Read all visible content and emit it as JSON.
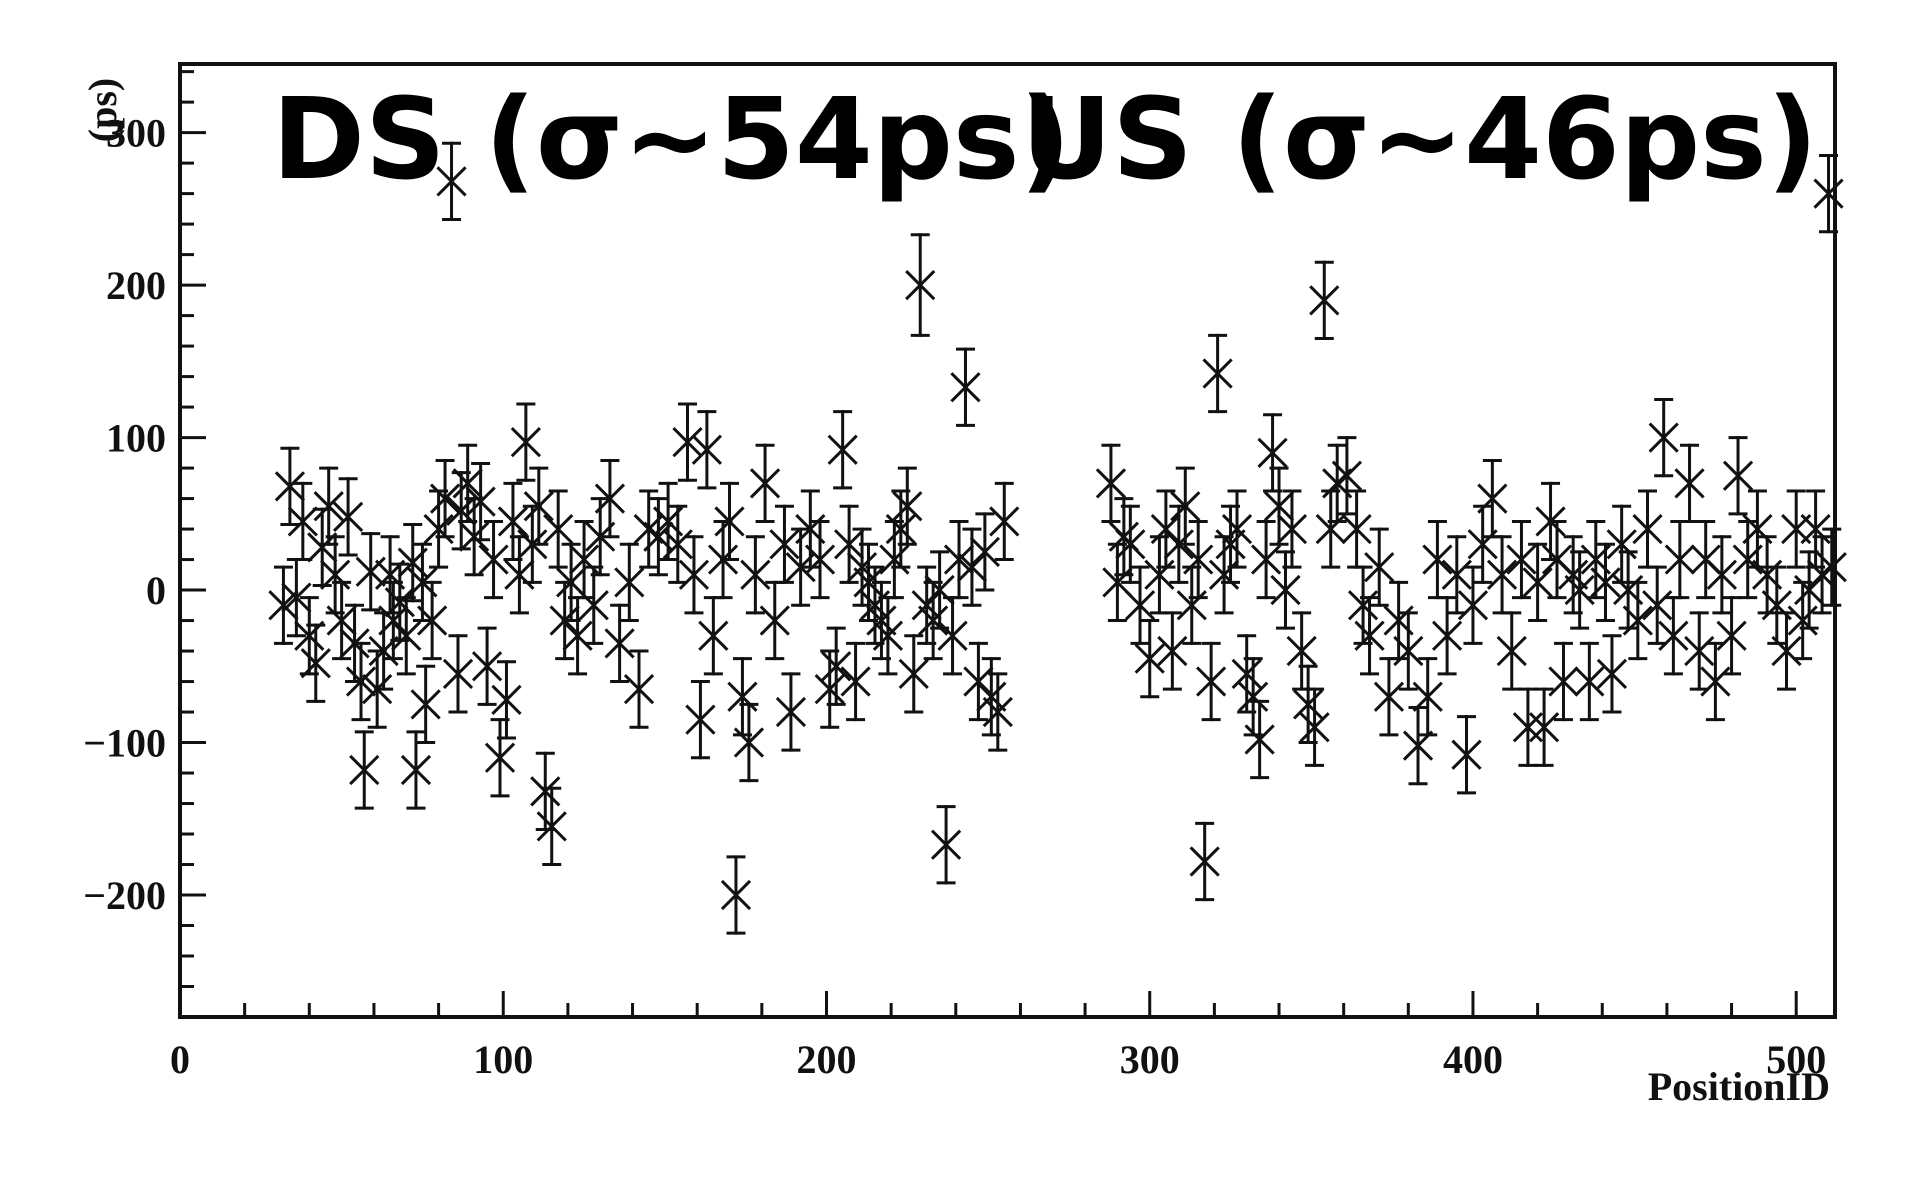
{
  "chart_data": {
    "type": "scatter",
    "title": "",
    "xlabel": "PositionID",
    "ylabel": "(ps)",
    "xlim": [
      0,
      512
    ],
    "ylim": [
      -280,
      345
    ],
    "grid": false,
    "legend": "none",
    "x_ticks": [
      0,
      100,
      200,
      300,
      400,
      500
    ],
    "y_ticks": [
      -200,
      -100,
      0,
      100,
      200,
      300
    ],
    "x_tick_labels": [
      "0",
      "100",
      "200",
      "300",
      "400",
      "500"
    ],
    "y_tick_labels": [
      "−200",
      "−100",
      "0",
      "100",
      "200",
      "300"
    ],
    "annotations": [
      {
        "text": "DS (σ~54ps)",
        "anchor": "top-left"
      },
      {
        "text": "US (σ~46ps)",
        "anchor": "top-right"
      }
    ],
    "marker": "x-with-error-bars",
    "color": "#111111",
    "series": [
      {
        "points": [
          {
            "x": 32,
            "y": -10,
            "err": 25
          },
          {
            "x": 34,
            "y": 68,
            "err": 25
          },
          {
            "x": 36,
            "y": -5,
            "err": 25
          },
          {
            "x": 38,
            "y": 45,
            "err": 25
          },
          {
            "x": 40,
            "y": -30,
            "err": 25
          },
          {
            "x": 42,
            "y": -48,
            "err": 25
          },
          {
            "x": 44,
            "y": 28,
            "err": 25
          },
          {
            "x": 46,
            "y": 55,
            "err": 25
          },
          {
            "x": 48,
            "y": 10,
            "err": 25
          },
          {
            "x": 50,
            "y": -20,
            "err": 25
          },
          {
            "x": 52,
            "y": 48,
            "err": 25
          },
          {
            "x": 54,
            "y": -35,
            "err": 25
          },
          {
            "x": 56,
            "y": -60,
            "err": 25
          },
          {
            "x": 57,
            "y": -118,
            "err": 25
          },
          {
            "x": 59,
            "y": 12,
            "err": 25
          },
          {
            "x": 61,
            "y": -65,
            "err": 25
          },
          {
            "x": 63,
            "y": -40,
            "err": 25
          },
          {
            "x": 65,
            "y": 10,
            "err": 25
          },
          {
            "x": 66,
            "y": -20,
            "err": 25
          },
          {
            "x": 68,
            "y": -8,
            "err": 25
          },
          {
            "x": 70,
            "y": -30,
            "err": 25
          },
          {
            "x": 72,
            "y": 18,
            "err": 25
          },
          {
            "x": 73,
            "y": -118,
            "err": 25
          },
          {
            "x": 75,
            "y": 5,
            "err": 25
          },
          {
            "x": 76,
            "y": -75,
            "err": 25
          },
          {
            "x": 78,
            "y": -20,
            "err": 25
          },
          {
            "x": 80,
            "y": 40,
            "err": 25
          },
          {
            "x": 82,
            "y": 60,
            "err": 25
          },
          {
            "x": 84,
            "y": 268,
            "err": 25
          },
          {
            "x": 86,
            "y": -55,
            "err": 25
          },
          {
            "x": 87,
            "y": 52,
            "err": 25
          },
          {
            "x": 89,
            "y": 70,
            "err": 25
          },
          {
            "x": 91,
            "y": 35,
            "err": 25
          },
          {
            "x": 93,
            "y": 58,
            "err": 25
          },
          {
            "x": 95,
            "y": -50,
            "err": 25
          },
          {
            "x": 97,
            "y": 20,
            "err": 25
          },
          {
            "x": 99,
            "y": -110,
            "err": 25
          },
          {
            "x": 101,
            "y": -72,
            "err": 25
          },
          {
            "x": 103,
            "y": 45,
            "err": 25
          },
          {
            "x": 105,
            "y": 10,
            "err": 25
          },
          {
            "x": 107,
            "y": 97,
            "err": 25
          },
          {
            "x": 109,
            "y": 30,
            "err": 25
          },
          {
            "x": 111,
            "y": 55,
            "err": 25
          },
          {
            "x": 113,
            "y": -132,
            "err": 25
          },
          {
            "x": 115,
            "y": -155,
            "err": 25
          },
          {
            "x": 117,
            "y": 40,
            "err": 25
          },
          {
            "x": 119,
            "y": -20,
            "err": 25
          },
          {
            "x": 121,
            "y": 5,
            "err": 25
          },
          {
            "x": 123,
            "y": -30,
            "err": 25
          },
          {
            "x": 125,
            "y": 20,
            "err": 25
          },
          {
            "x": 128,
            "y": -10,
            "err": 25
          },
          {
            "x": 130,
            "y": 35,
            "err": 25
          },
          {
            "x": 133,
            "y": 60,
            "err": 25
          },
          {
            "x": 136,
            "y": -35,
            "err": 25
          },
          {
            "x": 139,
            "y": 5,
            "err": 25
          },
          {
            "x": 142,
            "y": -65,
            "err": 25
          },
          {
            "x": 145,
            "y": 40,
            "err": 25
          },
          {
            "x": 148,
            "y": 35,
            "err": 25
          },
          {
            "x": 151,
            "y": 45,
            "err": 25
          },
          {
            "x": 154,
            "y": 30,
            "err": 25
          },
          {
            "x": 157,
            "y": 97,
            "err": 25
          },
          {
            "x": 159,
            "y": 10,
            "err": 25
          },
          {
            "x": 161,
            "y": -85,
            "err": 25
          },
          {
            "x": 163,
            "y": 92,
            "err": 25
          },
          {
            "x": 165,
            "y": -30,
            "err": 25
          },
          {
            "x": 168,
            "y": 20,
            "err": 25
          },
          {
            "x": 170,
            "y": 45,
            "err": 25
          },
          {
            "x": 172,
            "y": -200,
            "err": 25
          },
          {
            "x": 174,
            "y": -70,
            "err": 25
          },
          {
            "x": 176,
            "y": -100,
            "err": 25
          },
          {
            "x": 178,
            "y": 10,
            "err": 25
          },
          {
            "x": 181,
            "y": 70,
            "err": 25
          },
          {
            "x": 184,
            "y": -20,
            "err": 25
          },
          {
            "x": 187,
            "y": 30,
            "err": 25
          },
          {
            "x": 189,
            "y": -80,
            "err": 25
          },
          {
            "x": 192,
            "y": 15,
            "err": 25
          },
          {
            "x": 195,
            "y": 40,
            "err": 25
          },
          {
            "x": 198,
            "y": 20,
            "err": 25
          },
          {
            "x": 201,
            "y": -65,
            "err": 25
          },
          {
            "x": 203,
            "y": -50,
            "err": 25
          },
          {
            "x": 205,
            "y": 92,
            "err": 25
          },
          {
            "x": 207,
            "y": 30,
            "err": 25
          },
          {
            "x": 209,
            "y": -60,
            "err": 25
          },
          {
            "x": 211,
            "y": 15,
            "err": 25
          },
          {
            "x": 213,
            "y": 5,
            "err": 25
          },
          {
            "x": 215,
            "y": -10,
            "err": 25
          },
          {
            "x": 217,
            "y": -20,
            "err": 25
          },
          {
            "x": 219,
            "y": -30,
            "err": 25
          },
          {
            "x": 221,
            "y": 20,
            "err": 25
          },
          {
            "x": 223,
            "y": 40,
            "err": 25
          },
          {
            "x": 225,
            "y": 55,
            "err": 25
          },
          {
            "x": 227,
            "y": -55,
            "err": 25
          },
          {
            "x": 229,
            "y": 200,
            "err": 33
          },
          {
            "x": 231,
            "y": -10,
            "err": 25
          },
          {
            "x": 233,
            "y": -20,
            "err": 25
          },
          {
            "x": 235,
            "y": 0,
            "err": 25
          },
          {
            "x": 237,
            "y": -167,
            "err": 25
          },
          {
            "x": 239,
            "y": -30,
            "err": 25
          },
          {
            "x": 241,
            "y": 20,
            "err": 25
          },
          {
            "x": 243,
            "y": 133,
            "err": 25
          },
          {
            "x": 245,
            "y": 15,
            "err": 25
          },
          {
            "x": 247,
            "y": -60,
            "err": 25
          },
          {
            "x": 249,
            "y": 25,
            "err": 25
          },
          {
            "x": 251,
            "y": -70,
            "err": 25
          },
          {
            "x": 253,
            "y": -80,
            "err": 25
          },
          {
            "x": 255,
            "y": 45,
            "err": 25
          },
          {
            "x": 288,
            "y": 70,
            "err": 25
          },
          {
            "x": 290,
            "y": 5,
            "err": 25
          },
          {
            "x": 292,
            "y": 35,
            "err": 25
          },
          {
            "x": 294,
            "y": 30,
            "err": 25
          },
          {
            "x": 297,
            "y": -10,
            "err": 25
          },
          {
            "x": 300,
            "y": -45,
            "err": 25
          },
          {
            "x": 303,
            "y": 10,
            "err": 25
          },
          {
            "x": 305,
            "y": 40,
            "err": 25
          },
          {
            "x": 307,
            "y": -40,
            "err": 25
          },
          {
            "x": 309,
            "y": 30,
            "err": 25
          },
          {
            "x": 311,
            "y": 55,
            "err": 25
          },
          {
            "x": 313,
            "y": -10,
            "err": 25
          },
          {
            "x": 315,
            "y": 20,
            "err": 25
          },
          {
            "x": 317,
            "y": -178,
            "err": 25
          },
          {
            "x": 319,
            "y": -60,
            "err": 25
          },
          {
            "x": 321,
            "y": 142,
            "err": 25
          },
          {
            "x": 323,
            "y": 10,
            "err": 25
          },
          {
            "x": 325,
            "y": 30,
            "err": 25
          },
          {
            "x": 327,
            "y": 40,
            "err": 25
          },
          {
            "x": 330,
            "y": -55,
            "err": 25
          },
          {
            "x": 332,
            "y": -70,
            "err": 25
          },
          {
            "x": 334,
            "y": -98,
            "err": 25
          },
          {
            "x": 336,
            "y": 20,
            "err": 25
          },
          {
            "x": 338,
            "y": 90,
            "err": 25
          },
          {
            "x": 340,
            "y": 55,
            "err": 25
          },
          {
            "x": 342,
            "y": 0,
            "err": 25
          },
          {
            "x": 344,
            "y": 40,
            "err": 25
          },
          {
            "x": 347,
            "y": -40,
            "err": 25
          },
          {
            "x": 349,
            "y": -75,
            "err": 25
          },
          {
            "x": 351,
            "y": -90,
            "err": 25
          },
          {
            "x": 354,
            "y": 190,
            "err": 25
          },
          {
            "x": 356,
            "y": 40,
            "err": 25
          },
          {
            "x": 358,
            "y": 70,
            "err": 25
          },
          {
            "x": 361,
            "y": 75,
            "err": 25
          },
          {
            "x": 364,
            "y": 40,
            "err": 25
          },
          {
            "x": 366,
            "y": -10,
            "err": 25
          },
          {
            "x": 368,
            "y": -30,
            "err": 25
          },
          {
            "x": 371,
            "y": 15,
            "err": 25
          },
          {
            "x": 374,
            "y": -70,
            "err": 25
          },
          {
            "x": 377,
            "y": -20,
            "err": 25
          },
          {
            "x": 380,
            "y": -40,
            "err": 25
          },
          {
            "x": 383,
            "y": -102,
            "err": 25
          },
          {
            "x": 386,
            "y": -70,
            "err": 25
          },
          {
            "x": 389,
            "y": 20,
            "err": 25
          },
          {
            "x": 392,
            "y": -30,
            "err": 25
          },
          {
            "x": 395,
            "y": 10,
            "err": 25
          },
          {
            "x": 398,
            "y": -108,
            "err": 25
          },
          {
            "x": 400,
            "y": -10,
            "err": 25
          },
          {
            "x": 403,
            "y": 30,
            "err": 25
          },
          {
            "x": 406,
            "y": 60,
            "err": 25
          },
          {
            "x": 409,
            "y": 10,
            "err": 25
          },
          {
            "x": 412,
            "y": -40,
            "err": 25
          },
          {
            "x": 415,
            "y": 20,
            "err": 25
          },
          {
            "x": 417,
            "y": -90,
            "err": 25
          },
          {
            "x": 420,
            "y": 5,
            "err": 25
          },
          {
            "x": 422,
            "y": -90,
            "err": 25
          },
          {
            "x": 424,
            "y": 45,
            "err": 25
          },
          {
            "x": 426,
            "y": 20,
            "err": 25
          },
          {
            "x": 428,
            "y": -60,
            "err": 25
          },
          {
            "x": 431,
            "y": 10,
            "err": 25
          },
          {
            "x": 433,
            "y": 0,
            "err": 25
          },
          {
            "x": 436,
            "y": -60,
            "err": 25
          },
          {
            "x": 438,
            "y": 20,
            "err": 25
          },
          {
            "x": 441,
            "y": 5,
            "err": 25
          },
          {
            "x": 443,
            "y": -55,
            "err": 25
          },
          {
            "x": 446,
            "y": 30,
            "err": 25
          },
          {
            "x": 448,
            "y": 0,
            "err": 25
          },
          {
            "x": 451,
            "y": -20,
            "err": 25
          },
          {
            "x": 454,
            "y": 40,
            "err": 25
          },
          {
            "x": 457,
            "y": -10,
            "err": 25
          },
          {
            "x": 459,
            "y": 100,
            "err": 25
          },
          {
            "x": 462,
            "y": -30,
            "err": 25
          },
          {
            "x": 464,
            "y": 20,
            "err": 25
          },
          {
            "x": 467,
            "y": 70,
            "err": 25
          },
          {
            "x": 470,
            "y": -40,
            "err": 25
          },
          {
            "x": 472,
            "y": 20,
            "err": 25
          },
          {
            "x": 475,
            "y": -60,
            "err": 25
          },
          {
            "x": 477,
            "y": 10,
            "err": 25
          },
          {
            "x": 480,
            "y": -30,
            "err": 25
          },
          {
            "x": 482,
            "y": 75,
            "err": 25
          },
          {
            "x": 485,
            "y": 20,
            "err": 25
          },
          {
            "x": 488,
            "y": 40,
            "err": 25
          },
          {
            "x": 491,
            "y": 10,
            "err": 25
          },
          {
            "x": 494,
            "y": -10,
            "err": 25
          },
          {
            "x": 497,
            "y": -40,
            "err": 25
          },
          {
            "x": 500,
            "y": 40,
            "err": 25
          },
          {
            "x": 502,
            "y": -20,
            "err": 25
          },
          {
            "x": 504,
            "y": 0,
            "err": 25
          },
          {
            "x": 506,
            "y": 40,
            "err": 25
          },
          {
            "x": 508,
            "y": 10,
            "err": 25
          },
          {
            "x": 510,
            "y": 260,
            "err": 25
          },
          {
            "x": 511,
            "y": 15,
            "err": 25
          }
        ]
      }
    ]
  }
}
